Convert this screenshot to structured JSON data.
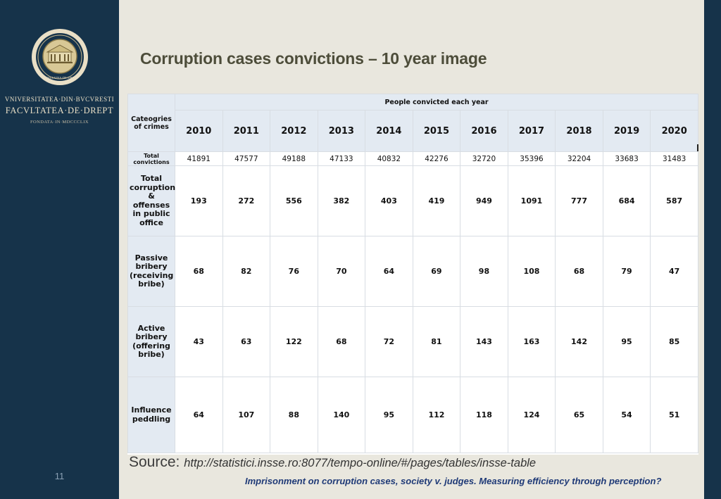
{
  "sidebar": {
    "seal_text": "FACVLTATEA·DE·DREPT",
    "university_line": "VNIVERSITATEA·DIN·BVCVRESTI",
    "faculty_line": "FACVLTATEA·DE·DREPT",
    "founded_line": "FONDATA·IN·MDCCCLIX",
    "page_number": "11"
  },
  "slide": {
    "title": "Corruption cases convictions – 10 year image"
  },
  "table": {
    "group_header": "People convicted each year",
    "category_header": "Cateogries of crimes",
    "years": [
      "2010",
      "2011",
      "2012",
      "2013",
      "2014",
      "2015",
      "2016",
      "2017",
      "2018",
      "2019",
      "2020"
    ],
    "rows": [
      {
        "label": "Total convictions",
        "values": [
          "41891",
          "47577",
          "49188",
          "47133",
          "40832",
          "42276",
          "32720",
          "35396",
          "32204",
          "33683",
          "31483"
        ]
      },
      {
        "label": "Total corruption & offenses in public office",
        "values": [
          "193",
          "272",
          "556",
          "382",
          "403",
          "419",
          "949",
          "1091",
          "777",
          "684",
          "587"
        ]
      },
      {
        "label": "Passive bribery (receiving bribe)",
        "values": [
          "68",
          "82",
          "76",
          "70",
          "64",
          "69",
          "98",
          "108",
          "68",
          "79",
          "47"
        ]
      },
      {
        "label": "Active bribery (offering bribe)",
        "values": [
          "43",
          "63",
          "122",
          "68",
          "72",
          "81",
          "143",
          "163",
          "142",
          "95",
          "85"
        ]
      },
      {
        "label": "Influence peddling",
        "values": [
          "64",
          "107",
          "88",
          "140",
          "95",
          "112",
          "118",
          "124",
          "65",
          "54",
          "51"
        ]
      }
    ]
  },
  "footer": {
    "source_label": "Source:",
    "source_url": "http://statistici.insse.ro:8077/tempo-online/#/pages/tables/insse-table",
    "caption": "Imprisonment on corruption cases, society v. judges. Measuring efficiency through perception?"
  },
  "colors": {
    "sidebar": "#16334a",
    "background": "#e9e7de",
    "header_fill": "#e3eaf2",
    "caption": "#1f3a77"
  }
}
